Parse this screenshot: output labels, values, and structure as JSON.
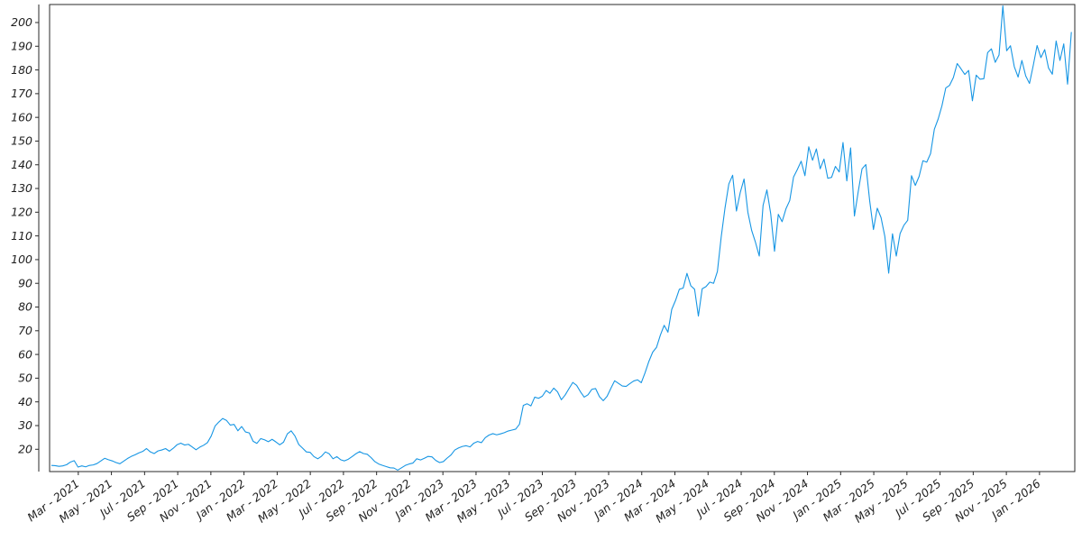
{
  "figure": {
    "background": "#ffffff",
    "description": "Daily price line chart, approximately Jan 2021 through Feb 2026"
  },
  "chart_data": {
    "type": "line",
    "title": "",
    "xlabel": "",
    "ylabel": "",
    "grid": false,
    "legend": "none",
    "style": {
      "line_color": "#1796e4",
      "axis_color": "#2a2a2a",
      "tick_label_color": "#1f1f1f",
      "x_label_rotation_deg": 37
    },
    "x_axis": {
      "tick_labels": [
        "Mar - 2021",
        "May - 2021",
        "Jul - 2021",
        "Sep - 2021",
        "Nov - 2021",
        "Jan - 2022",
        "Mar - 2022",
        "May - 2022",
        "Jul - 2022",
        "Sep - 2022",
        "Nov - 2022",
        "Jan - 2023",
        "Mar - 2023",
        "May - 2023",
        "Jul - 2023",
        "Sep - 2023",
        "Nov - 2023",
        "Jan - 2024",
        "Mar - 2024",
        "May - 2024",
        "Jul - 2024",
        "Sep - 2024",
        "Nov - 2024",
        "Jan - 2025",
        "Mar - 2025",
        "May - 2025",
        "Jul - 2025",
        "Sep - 2025",
        "Nov - 2025",
        "Jan - 2026"
      ],
      "first_tick_week": 7.07,
      "tick_interval_weeks": 8.709,
      "domain_weeks": [
        -0.47,
        268.9
      ]
    },
    "y_axis": {
      "ticks": [
        20,
        30,
        40,
        50,
        60,
        70,
        80,
        90,
        100,
        110,
        120,
        130,
        140,
        150,
        160,
        170,
        180,
        190,
        200
      ],
      "range": [
        10.6,
        207.6
      ]
    },
    "series": [
      {
        "name": "price",
        "sampling": "weekly",
        "start_period": "2021-01",
        "end_period": "2026-02",
        "values": [
          13.2,
          13.1,
          12.8,
          13.0,
          13.5,
          14.6,
          15.2,
          12.5,
          13.0,
          12.6,
          13.2,
          13.4,
          14.0,
          15.1,
          16.2,
          15.6,
          15.1,
          14.4,
          13.9,
          15.0,
          16.1,
          17.0,
          17.7,
          18.5,
          19.1,
          20.3,
          18.9,
          18.2,
          19.3,
          19.7,
          20.3,
          19.2,
          20.4,
          21.9,
          22.6,
          21.8,
          22.1,
          21.0,
          19.8,
          20.9,
          21.7,
          22.8,
          25.6,
          29.8,
          31.5,
          33.0,
          32.2,
          30.2,
          30.5,
          27.8,
          29.6,
          27.3,
          26.9,
          23.4,
          22.5,
          24.5,
          24.0,
          23.2,
          24.2,
          23.1,
          21.9,
          23.0,
          26.5,
          27.8,
          25.6,
          22.0,
          20.5,
          18.9,
          18.7,
          16.9,
          16.0,
          17.1,
          18.9,
          18.1,
          16.0,
          16.9,
          15.6,
          15.1,
          15.8,
          16.9,
          18.1,
          19.0,
          18.2,
          17.9,
          16.5,
          14.8,
          13.8,
          13.2,
          12.7,
          12.2,
          12.1,
          11.2,
          12.2,
          13.2,
          13.8,
          14.2,
          16.0,
          15.5,
          16.2,
          17.0,
          16.8,
          15.3,
          14.4,
          14.8,
          16.3,
          17.6,
          19.7,
          20.6,
          21.2,
          21.5,
          21.0,
          22.6,
          23.3,
          22.8,
          24.9,
          26.0,
          26.6,
          26.1,
          26.5,
          27.0,
          27.7,
          28.1,
          28.5,
          30.6,
          38.5,
          39.2,
          38.3,
          42.0,
          41.5,
          42.4,
          44.8,
          43.6,
          45.8,
          44.2,
          40.9,
          42.9,
          45.6,
          48.2,
          47.0,
          44.3,
          42.0,
          43.0,
          45.3,
          45.6,
          42.2,
          40.5,
          42.3,
          45.7,
          48.9,
          47.8,
          46.7,
          46.5,
          47.7,
          48.8,
          49.3,
          48.1,
          52.3,
          57.1,
          61.0,
          63.0,
          68.1,
          72.3,
          69.4,
          79.0,
          82.8,
          87.5,
          88.0,
          94.2,
          89.0,
          87.5,
          76.2,
          87.7,
          88.6,
          90.5,
          90.0,
          95.0,
          109.6,
          121.8,
          131.9,
          135.6,
          120.5,
          128.3,
          134.0,
          120.0,
          112.3,
          107.3,
          101.5,
          122.9,
          129.4,
          119.4,
          103.5,
          119.1,
          116.0,
          121.4,
          124.9,
          134.8,
          138.0,
          141.5,
          135.4,
          147.6,
          141.9,
          146.7,
          138.3,
          142.4,
          134.3,
          134.7,
          139.3,
          137.0,
          149.4,
          133.2,
          147.1,
          118.4,
          128.7,
          138.3,
          140.1,
          124.9,
          112.7,
          121.7,
          117.7,
          109.7,
          94.3,
          110.9,
          101.5,
          111.0,
          114.5,
          116.6,
          135.4,
          131.3,
          135.1,
          141.7,
          141.1,
          144.7,
          155.0,
          159.3,
          164.9,
          172.4,
          173.5,
          176.8,
          182.7,
          180.5,
          178.1,
          179.8,
          167.0,
          177.8,
          176.1,
          176.3,
          187.3,
          188.9,
          183.2,
          186.3,
          207.0,
          188.1,
          190.2,
          181.4,
          177.0,
          184.0,
          177.5,
          174.3,
          182.0,
          190.3,
          185.2,
          188.6,
          180.8,
          178.2,
          192.2,
          184.0,
          191.0,
          174.0,
          196.0
        ]
      }
    ]
  }
}
